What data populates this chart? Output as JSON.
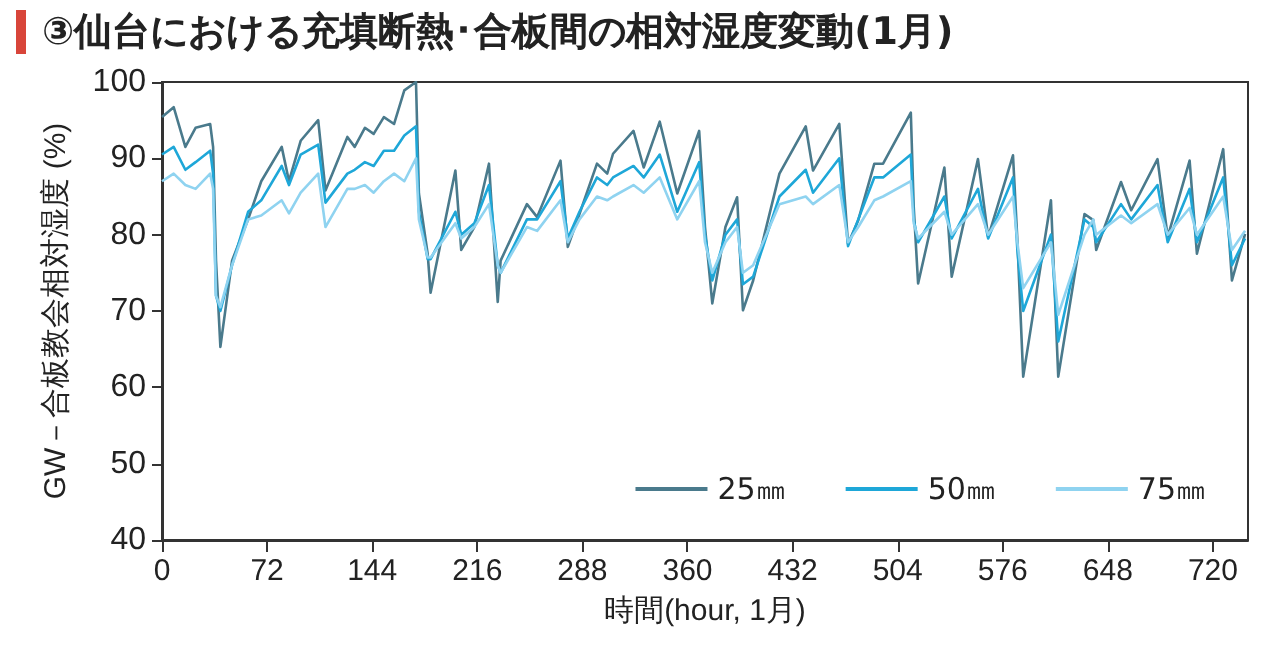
{
  "chart_data": {
    "type": "line",
    "title": "③仙台における充填断熱･合板間の相対湿度変動(1月)",
    "xlabel": "時間(hour, 1月)",
    "ylabel": "GW－合板教会相対湿度 (%)",
    "x": [
      0,
      8,
      16,
      23,
      33,
      35,
      37,
      40,
      48,
      59,
      68,
      82,
      87,
      95,
      107,
      112,
      127,
      132,
      139,
      145,
      152,
      159,
      166,
      174,
      176,
      182,
      184,
      201,
      205,
      214,
      224,
      230,
      232,
      250,
      257,
      273,
      278,
      286,
      298,
      305,
      309,
      323,
      330,
      341,
      353,
      368,
      372,
      377,
      386,
      394,
      398,
      405,
      423,
      441,
      446,
      464,
      470,
      477,
      488,
      494,
      513,
      515,
      518,
      536,
      541,
      559,
      566,
      583,
      586,
      590,
      609,
      614,
      632,
      638,
      640,
      657,
      664,
      682,
      689,
      704,
      709,
      727,
      733,
      742
    ],
    "series": [
      {
        "name": "25㎜",
        "color": "#4a7a8c",
        "values": [
          95.4,
          96.7,
          91.5,
          94,
          94.5,
          91.5,
          76.6,
          65.3,
          76.6,
          82,
          87,
          91.5,
          87,
          92.3,
          95,
          85.8,
          92.8,
          91.5,
          94,
          93.2,
          95.4,
          94.5,
          98.9,
          100,
          85.4,
          77.5,
          72.4,
          88.4,
          78,
          81,
          89.3,
          71.2,
          76.6,
          84,
          82.3,
          89.7,
          78.4,
          82.7,
          89.3,
          88,
          90.6,
          93.6,
          88.8,
          94.8,
          85.4,
          93.6,
          81,
          71,
          81,
          84.9,
          70.1,
          74,
          88,
          94.2,
          88.4,
          94.5,
          78.8,
          81.9,
          89.3,
          89.3,
          96,
          83.6,
          73.6,
          88.8,
          74.5,
          89.9,
          79.7,
          90.4,
          79.3,
          61.4,
          84.5,
          61.4,
          82.7,
          81.9,
          78,
          86.9,
          83.2,
          89.9,
          79.7,
          89.7,
          77.5,
          91.2,
          74,
          80.1
        ]
      },
      {
        "name": "50㎜",
        "color": "#1ea7d8",
        "values": [
          90.5,
          91.5,
          88.5,
          89.5,
          91,
          88,
          72,
          70,
          76,
          83,
          84.5,
          89,
          86.5,
          90.5,
          91.8,
          84.2,
          88,
          88.5,
          89.5,
          89,
          91,
          91,
          93,
          94.2,
          83,
          76.8,
          76.8,
          83,
          80,
          81.5,
          86.5,
          76,
          75,
          82,
          82,
          87,
          79.5,
          83,
          87.5,
          86.5,
          87.5,
          89,
          87.5,
          90.5,
          83,
          89.5,
          80,
          74,
          80,
          82,
          73.5,
          74.5,
          85,
          88.5,
          85.5,
          90,
          78.5,
          82,
          87.5,
          87.5,
          90.5,
          82,
          79,
          85,
          79.5,
          86,
          79.5,
          87.5,
          78,
          70,
          80,
          66,
          82,
          81,
          79,
          84,
          82,
          86.5,
          79,
          86,
          79,
          87.5,
          76,
          79.5
        ]
      },
      {
        "name": "75㎜",
        "color": "#8fd3f0",
        "values": [
          87,
          88,
          86.5,
          86,
          88,
          86,
          72,
          70.5,
          76,
          82,
          82.5,
          84.5,
          82.8,
          85.5,
          88,
          81,
          86,
          86,
          86.5,
          85.5,
          87,
          88,
          87,
          90,
          82,
          77,
          77,
          81.5,
          79.5,
          81,
          84,
          76,
          75,
          81,
          80.5,
          84.5,
          79,
          82,
          85,
          84.5,
          85,
          86.5,
          85.5,
          87.5,
          82,
          87,
          79,
          75,
          79,
          81,
          75,
          76,
          84,
          85,
          84,
          86.5,
          79,
          81,
          84.5,
          85,
          87,
          81.5,
          79.5,
          83,
          80,
          84,
          80,
          85,
          79,
          73,
          79,
          69.5,
          80,
          82,
          80,
          82.5,
          81.5,
          84,
          80,
          83.5,
          80,
          85,
          78,
          80.5
        ]
      }
    ],
    "xlim": [
      0,
      744
    ],
    "xticks": [
      0,
      72,
      144,
      216,
      288,
      360,
      432,
      504,
      576,
      648,
      720
    ],
    "ylim": [
      40,
      100
    ],
    "yticks": [
      40,
      50,
      60,
      70,
      80,
      90,
      100
    ],
    "grid": false,
    "legend": "bottom right",
    "marker": "none",
    "line_style": "solid"
  }
}
